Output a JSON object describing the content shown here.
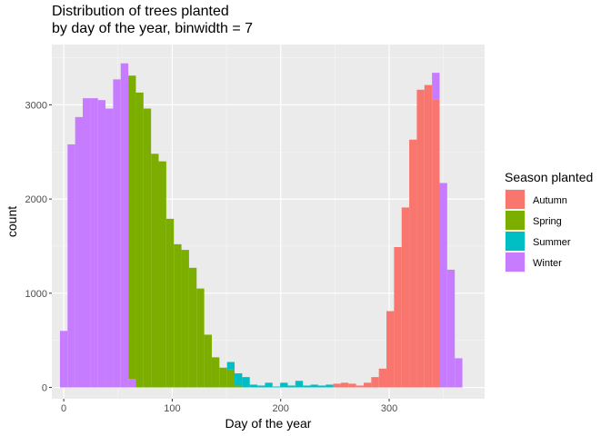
{
  "chart_data": {
    "type": "bar",
    "title_line1": "Distribution of trees planted",
    "title_line2": "by day of the year, binwidth = 7",
    "xlabel": "Day of the year",
    "ylabel": "count",
    "xlim": [
      -11,
      388
    ],
    "ylim": [
      -120,
      3640
    ],
    "x_ticks": [
      0,
      100,
      200,
      300
    ],
    "y_ticks": [
      0,
      1000,
      2000,
      3000
    ],
    "grid": true,
    "legend_position": "right",
    "binwidth": 7,
    "legend": {
      "title": "Season planted",
      "entries": [
        {
          "name": "Autumn",
          "color": "#F8766D"
        },
        {
          "name": "Spring",
          "color": "#7CAE00"
        },
        {
          "name": "Summer",
          "color": "#00BFC4"
        },
        {
          "name": "Winter",
          "color": "#C77CFF"
        }
      ]
    },
    "series": [
      {
        "name": "Winter",
        "color": "#C77CFF",
        "bins": [
          {
            "x": 0,
            "value": 600
          },
          {
            "x": 7,
            "value": 2580
          },
          {
            "x": 14,
            "value": 2870
          },
          {
            "x": 21,
            "value": 3070
          },
          {
            "x": 28,
            "value": 3070
          },
          {
            "x": 35,
            "value": 3050
          },
          {
            "x": 42,
            "value": 2960
          },
          {
            "x": 49,
            "value": 3270
          },
          {
            "x": 56,
            "value": 3440
          },
          {
            "x": 63,
            "value": 90
          }
        ]
      },
      {
        "name": "Spring",
        "color": "#7CAE00",
        "bins": [
          {
            "x": 63,
            "value": 3220
          },
          {
            "x": 70,
            "value": 3130
          },
          {
            "x": 77,
            "value": 2960
          },
          {
            "x": 84,
            "value": 2480
          },
          {
            "x": 91,
            "value": 2400
          },
          {
            "x": 98,
            "value": 1790
          },
          {
            "x": 105,
            "value": 1520
          },
          {
            "x": 112,
            "value": 1460
          },
          {
            "x": 119,
            "value": 1270
          },
          {
            "x": 126,
            "value": 1050
          },
          {
            "x": 133,
            "value": 560
          },
          {
            "x": 140,
            "value": 320
          },
          {
            "x": 147,
            "value": 210
          },
          {
            "x": 154,
            "value": 190
          },
          {
            "x": 161,
            "value": 20
          }
        ]
      },
      {
        "name": "Summer",
        "color": "#00BFC4",
        "bins": [
          {
            "x": 154,
            "value": 80
          },
          {
            "x": 161,
            "value": 130
          },
          {
            "x": 168,
            "value": 110
          },
          {
            "x": 175,
            "value": 30
          },
          {
            "x": 182,
            "value": 20
          },
          {
            "x": 189,
            "value": 50
          },
          {
            "x": 196,
            "value": 10
          },
          {
            "x": 203,
            "value": 50
          },
          {
            "x": 210,
            "value": 20
          },
          {
            "x": 217,
            "value": 70
          },
          {
            "x": 224,
            "value": 20
          },
          {
            "x": 231,
            "value": 30
          },
          {
            "x": 238,
            "value": 20
          },
          {
            "x": 245,
            "value": 30
          },
          {
            "x": 252,
            "value": 0
          }
        ]
      },
      {
        "name": "Autumn",
        "color": "#F8766D",
        "bins": [
          {
            "x": 252,
            "value": 40
          },
          {
            "x": 259,
            "value": 50
          },
          {
            "x": 266,
            "value": 40
          },
          {
            "x": 273,
            "value": 20
          },
          {
            "x": 280,
            "value": 50
          },
          {
            "x": 287,
            "value": 110
          },
          {
            "x": 294,
            "value": 200
          },
          {
            "x": 301,
            "value": 810
          },
          {
            "x": 308,
            "value": 1490
          },
          {
            "x": 315,
            "value": 1910
          },
          {
            "x": 322,
            "value": 2630
          },
          {
            "x": 329,
            "value": 3160
          },
          {
            "x": 336,
            "value": 3210
          },
          {
            "x": 343,
            "value": 3060
          }
        ]
      },
      {
        "name": "Winter",
        "color": "#C77CFF",
        "bins": [
          {
            "x": 343,
            "value": 280
          },
          {
            "x": 350,
            "value": 2170
          },
          {
            "x": 357,
            "value": 1250
          },
          {
            "x": 364,
            "value": 310
          }
        ]
      }
    ]
  }
}
